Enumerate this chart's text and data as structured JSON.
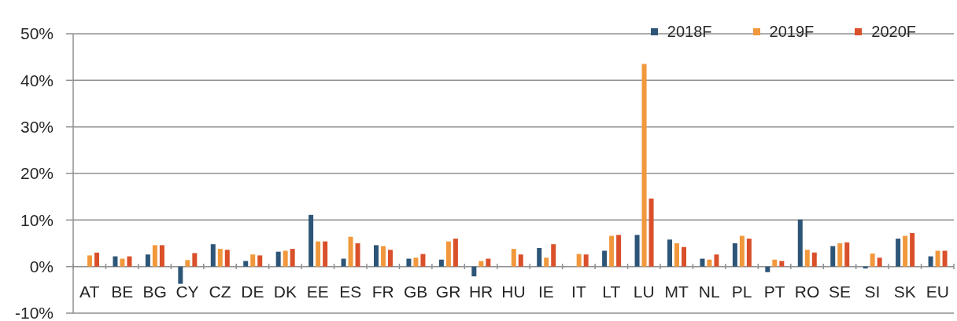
{
  "chart_data": {
    "type": "bar",
    "categories": [
      "AT",
      "BE",
      "BG",
      "CY",
      "CZ",
      "DE",
      "DK",
      "EE",
      "ES",
      "FR",
      "GB",
      "GR",
      "HR",
      "HU",
      "IE",
      "IT",
      "LT",
      "LU",
      "MT",
      "NL",
      "PL",
      "PT",
      "RO",
      "SE",
      "SI",
      "SK",
      "EU"
    ],
    "series": [
      {
        "name": "2018F",
        "color": "#2d5577",
        "values": [
          null,
          2.2,
          2.6,
          -3.7,
          4.8,
          1.2,
          3.2,
          11.1,
          1.7,
          4.6,
          1.7,
          1.5,
          -2.1,
          null,
          4.0,
          null,
          3.4,
          6.8,
          5.8,
          1.7,
          5.0,
          -1.2,
          10.1,
          4.4,
          -0.4,
          6.0,
          2.2
        ]
      },
      {
        "name": "2019F",
        "color": "#f1983c",
        "values": [
          2.4,
          1.7,
          4.6,
          1.4,
          3.8,
          2.6,
          3.4,
          5.4,
          6.4,
          4.4,
          1.9,
          5.4,
          1.2,
          3.8,
          1.9,
          2.7,
          6.6,
          43.5,
          5.0,
          1.5,
          6.6,
          1.5,
          3.6,
          5.0,
          2.8,
          6.6,
          3.4
        ]
      },
      {
        "name": "2020F",
        "color": "#d9502a",
        "values": [
          3.0,
          2.2,
          4.6,
          2.9,
          3.6,
          2.4,
          3.8,
          5.4,
          5.0,
          3.6,
          2.7,
          6.0,
          1.7,
          2.6,
          4.8,
          2.6,
          6.8,
          14.6,
          4.2,
          2.6,
          6.0,
          1.2,
          3.0,
          5.2,
          1.9,
          7.2,
          3.4
        ]
      }
    ],
    "ylim": [
      -10,
      50
    ],
    "yticks": [
      {
        "value": -10,
        "label": "-10%"
      },
      {
        "value": 0,
        "label": "0%"
      },
      {
        "value": 10,
        "label": "10%"
      },
      {
        "value": 20,
        "label": "20%"
      },
      {
        "value": 30,
        "label": "30%"
      },
      {
        "value": 40,
        "label": "40%"
      },
      {
        "value": 50,
        "label": "50%"
      }
    ],
    "grid": "y",
    "legend": "top right"
  }
}
